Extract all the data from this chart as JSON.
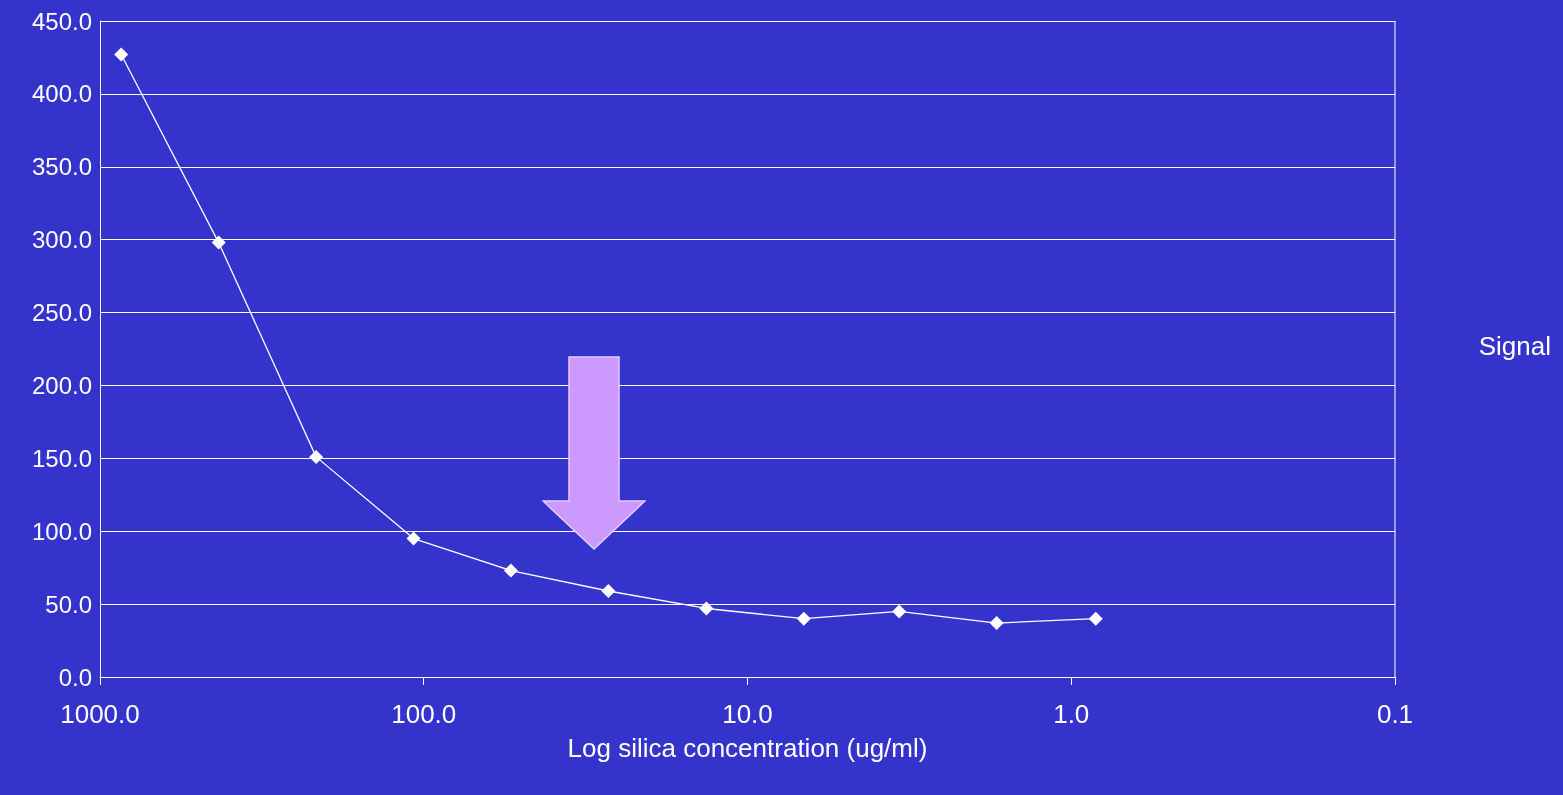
{
  "chart_data": {
    "type": "line",
    "xlabel": "Log silica concentration (ug/ml)",
    "ylabel": "Signal",
    "x": [
      860,
      430,
      215,
      107.5,
      53.8,
      26.9,
      13.4,
      6.7,
      3.4,
      1.7,
      0.84
    ],
    "series": [
      {
        "color": "#ffffff",
        "values": [
          427,
          298,
          151,
          95,
          73,
          59,
          47,
          40,
          45,
          37,
          40
        ]
      }
    ],
    "log": "x",
    "xlim": [
      1000,
      0.1
    ],
    "xticks": [
      {
        "value": 1000,
        "label": "1000.0"
      },
      {
        "value": 100,
        "label": "100.0"
      },
      {
        "value": 10,
        "label": "10.0"
      },
      {
        "value": 1,
        "label": "1.0"
      },
      {
        "value": 0.1,
        "label": "0.1"
      }
    ],
    "ylim": [
      0,
      450
    ],
    "yticks": [
      {
        "value": 0,
        "label": "0.0"
      },
      {
        "value": 50,
        "label": "50.0"
      },
      {
        "value": 100,
        "label": "100.0"
      },
      {
        "value": 150,
        "label": "150.0"
      },
      {
        "value": 200,
        "label": "200.0"
      },
      {
        "value": 250,
        "label": "250.0"
      },
      {
        "value": 300,
        "label": "300.0"
      },
      {
        "value": 350,
        "label": "350.0"
      },
      {
        "value": 400,
        "label": "400.0"
      },
      {
        "value": 450,
        "label": "450.0"
      }
    ],
    "grid": "y",
    "marker": "diamond",
    "line_style": "solid"
  }
}
